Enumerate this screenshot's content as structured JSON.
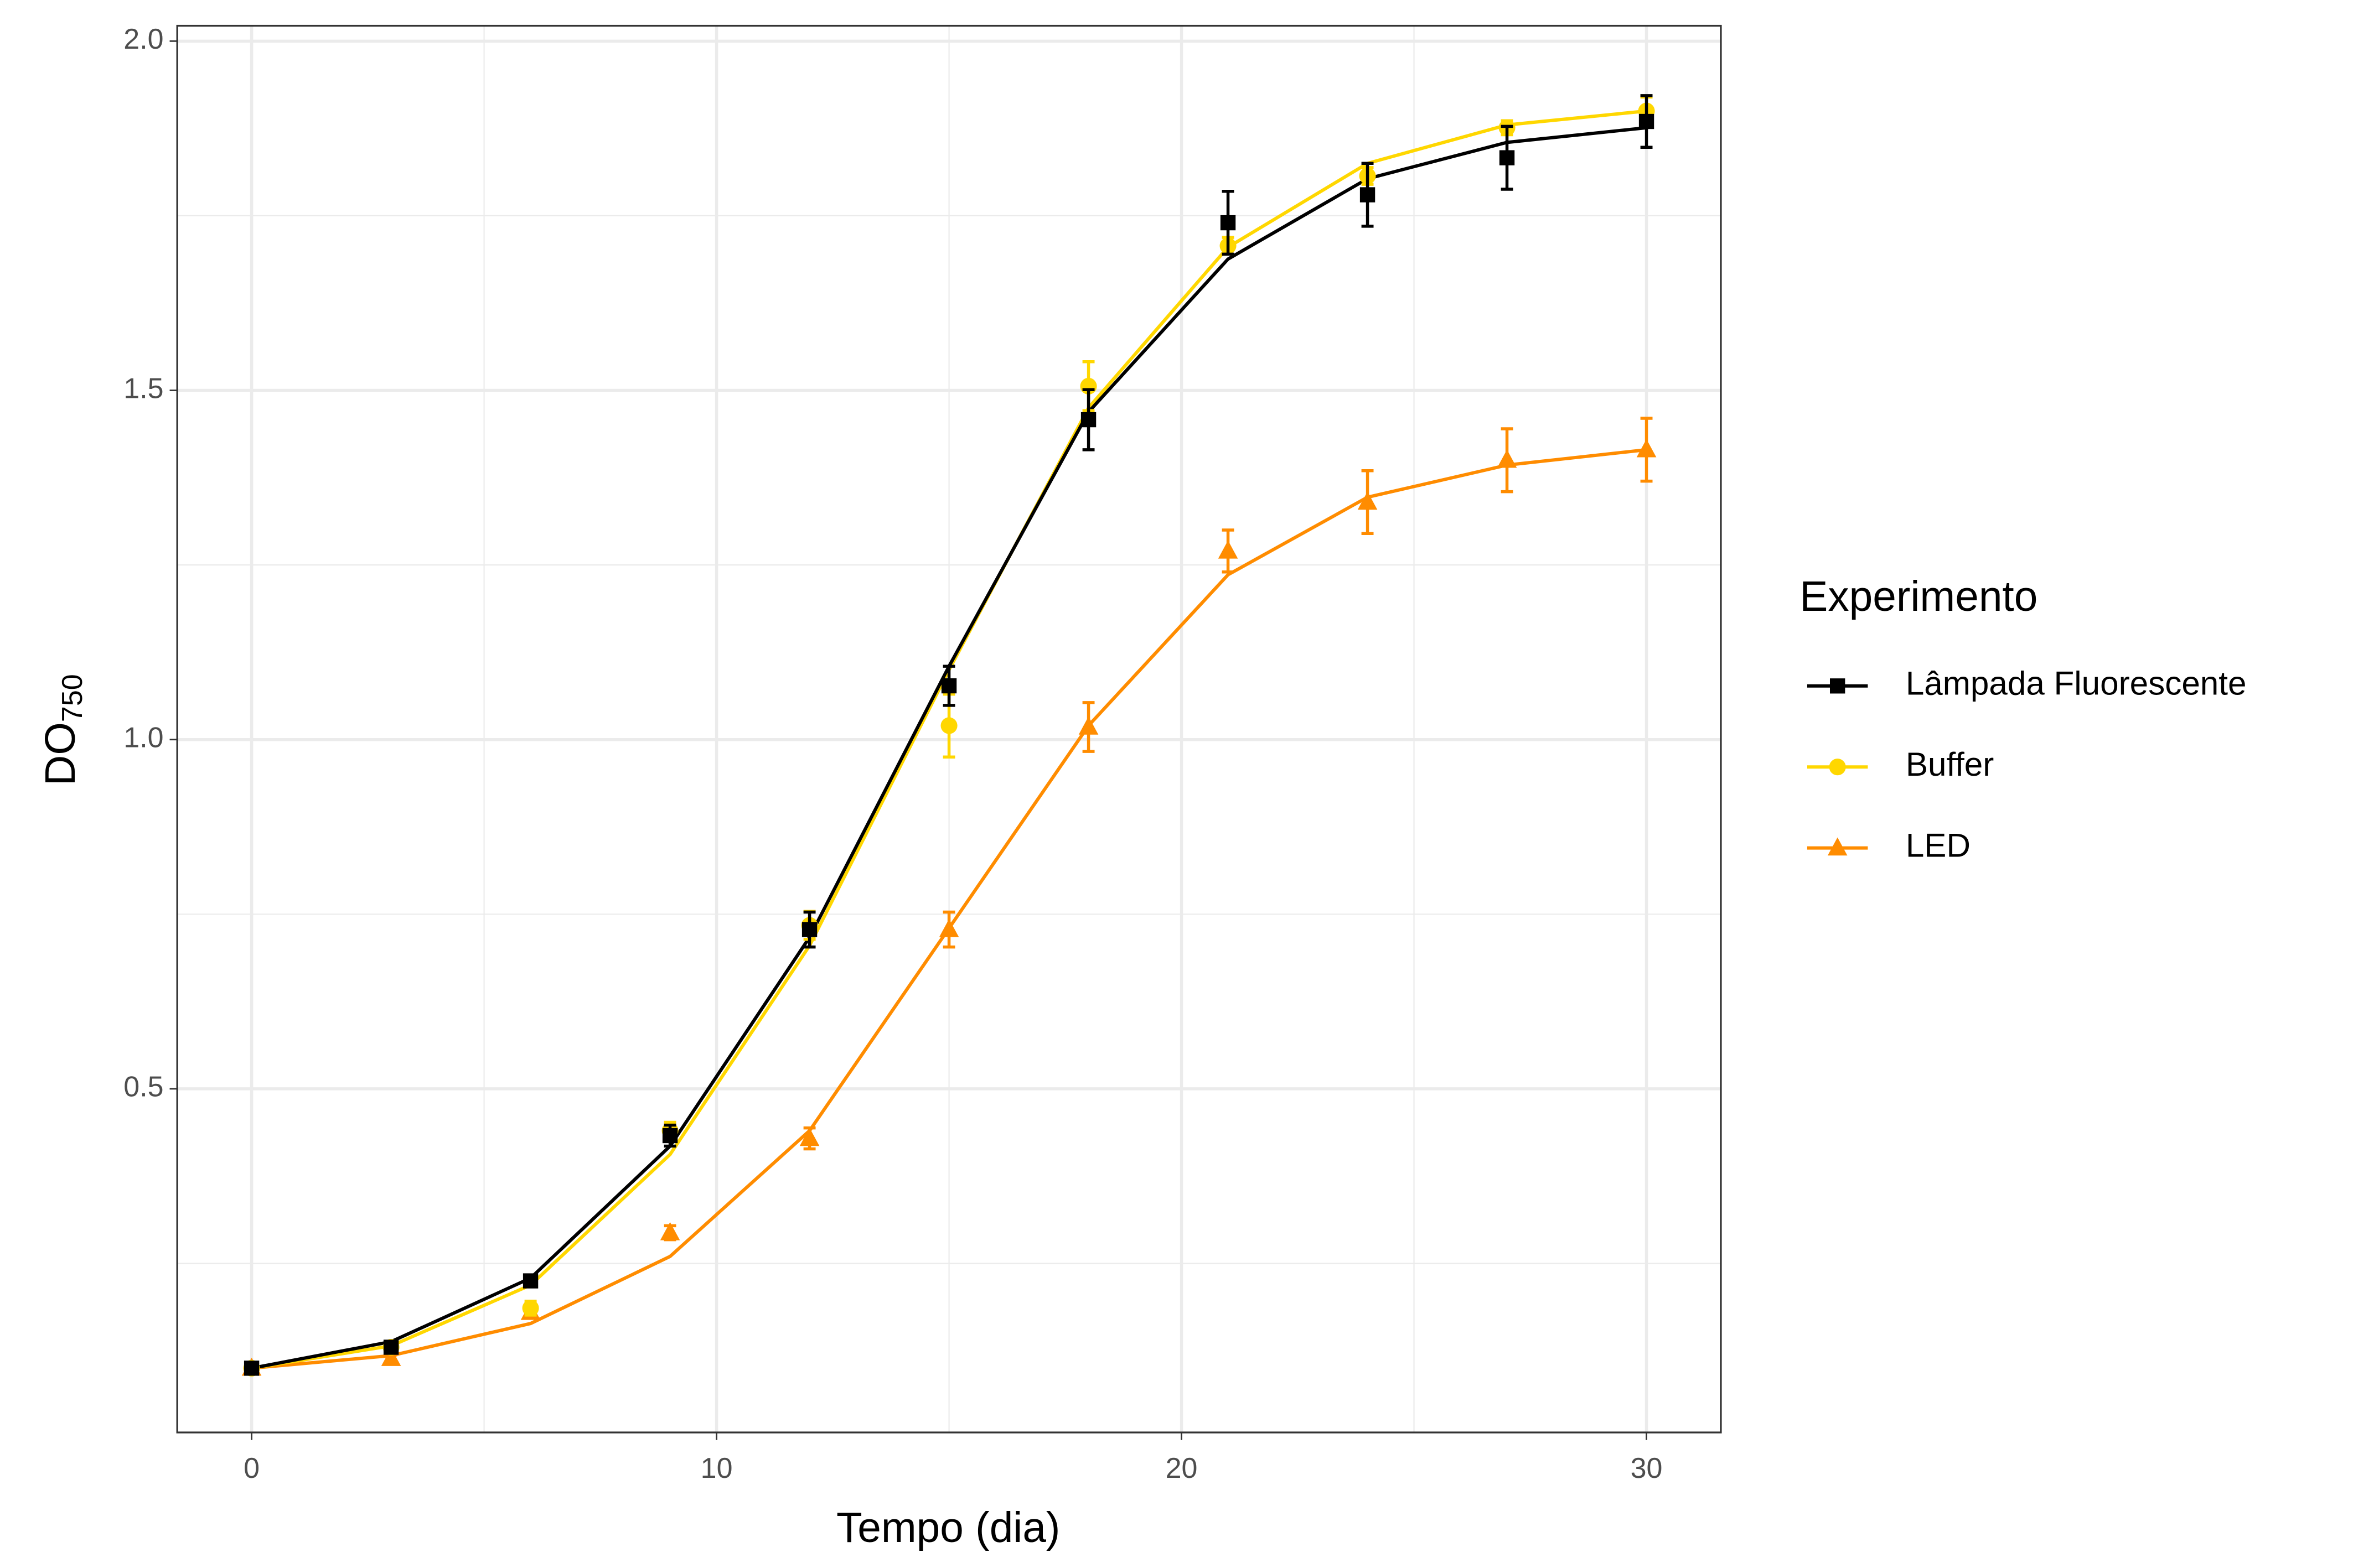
{
  "chart_data": {
    "type": "line",
    "xlabel": "Tempo (dia)",
    "ylabel": {
      "text": "DO",
      "subscript": "750"
    },
    "legend_title": "Experimento",
    "legend_position": "right",
    "grid": true,
    "x": [
      0,
      3,
      6,
      9,
      12,
      15,
      18,
      21,
      24,
      27,
      30
    ],
    "xlim": [
      -1.6,
      31.6
    ],
    "ylim": [
      0.008,
      2.022
    ],
    "xticks": [
      0,
      10,
      20,
      30
    ],
    "yticks": [
      {
        "value": 0.5,
        "label": "0.5"
      },
      {
        "value": 1,
        "label": "1.0"
      },
      {
        "value": 1.5,
        "label": "1.5"
      },
      {
        "value": 2,
        "label": "2.0"
      }
    ],
    "xminor": [
      5,
      15,
      25
    ],
    "yminor": [
      0.25,
      0.75,
      1.25,
      1.75
    ],
    "series": [
      {
        "name": "Lâmpada Fluorescente",
        "color": "#000000",
        "marker": "square",
        "values": [
          0.1,
          0.13,
          0.225,
          0.433,
          0.728,
          1.077,
          1.458,
          1.74,
          1.78,
          1.833,
          1.885
        ],
        "errors": [
          0.005,
          0.005,
          0.008,
          0.015,
          0.025,
          0.028,
          0.043,
          0.045,
          0.045,
          0.045,
          0.037
        ],
        "fit": [
          0.1,
          0.138,
          0.229,
          0.418,
          0.717,
          1.105,
          1.469,
          1.688,
          1.803,
          1.855,
          1.876
        ]
      },
      {
        "name": "Buffer",
        "color": "#FFD700",
        "marker": "circle",
        "values": [
          0.1,
          0.13,
          0.186,
          0.44,
          0.734,
          1.02,
          1.506,
          1.707,
          1.807,
          1.876,
          1.9
        ],
        "errors": [
          0.005,
          0.005,
          0.01,
          0.012,
          0.02,
          0.045,
          0.035,
          0.012,
          0.012,
          0.01,
          0.02
        ],
        "fit": [
          0.1,
          0.132,
          0.219,
          0.406,
          0.705,
          1.1,
          1.475,
          1.705,
          1.825,
          1.88,
          1.9
        ]
      },
      {
        "name": "LED",
        "color": "#FF8C00",
        "marker": "triangle",
        "values": [
          0.1,
          0.114,
          0.18,
          0.294,
          0.429,
          0.728,
          1.018,
          1.27,
          1.34,
          1.4,
          1.415
        ],
        "errors": [
          0.005,
          0.005,
          0.008,
          0.01,
          0.015,
          0.025,
          0.035,
          0.03,
          0.045,
          0.045,
          0.045
        ],
        "fit": [
          0.1,
          0.118,
          0.164,
          0.26,
          0.44,
          0.73,
          1.02,
          1.236,
          1.347,
          1.393,
          1.415
        ]
      }
    ]
  }
}
